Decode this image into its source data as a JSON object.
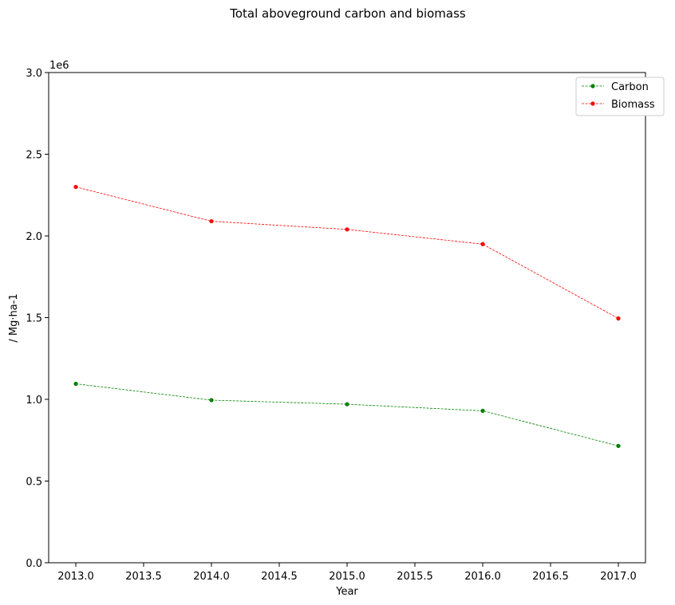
{
  "chart_data": {
    "type": "line",
    "title": "Total aboveground carbon and biomass",
    "xlabel": "Year",
    "ylabel": "/ Mg·ha-1",
    "y_offset_label": "1e6",
    "x": [
      2013.0,
      2014.0,
      2015.0,
      2016.0,
      2017.0
    ],
    "xlim": [
      2012.8,
      2017.2
    ],
    "ylim": [
      0,
      3000000
    ],
    "x_ticks": [
      2013.0,
      2013.5,
      2014.0,
      2014.5,
      2015.0,
      2015.5,
      2016.0,
      2016.5,
      2017.0
    ],
    "x_tick_labels": [
      "2013.0",
      "2013.5",
      "2014.0",
      "2014.5",
      "2015.0",
      "2015.5",
      "2016.0",
      "2016.5",
      "2017.0"
    ],
    "y_ticks": [
      0,
      500000,
      1000000,
      1500000,
      2000000,
      2500000,
      3000000
    ],
    "y_tick_labels": [
      "0.0",
      "0.5",
      "1.0",
      "1.5",
      "2.0",
      "2.5",
      "3.0"
    ],
    "grid": false,
    "legend_position": "top-right",
    "series": [
      {
        "name": "Carbon",
        "color": "#008000",
        "line_style": "dashed",
        "marker": "circle",
        "values": [
          1095000,
          995000,
          970000,
          930000,
          715000
        ]
      },
      {
        "name": "Biomass",
        "color": "#ff0000",
        "line_style": "dashed",
        "marker": "circle",
        "values": [
          2300000,
          2090000,
          2040000,
          1950000,
          1495000
        ]
      }
    ]
  }
}
